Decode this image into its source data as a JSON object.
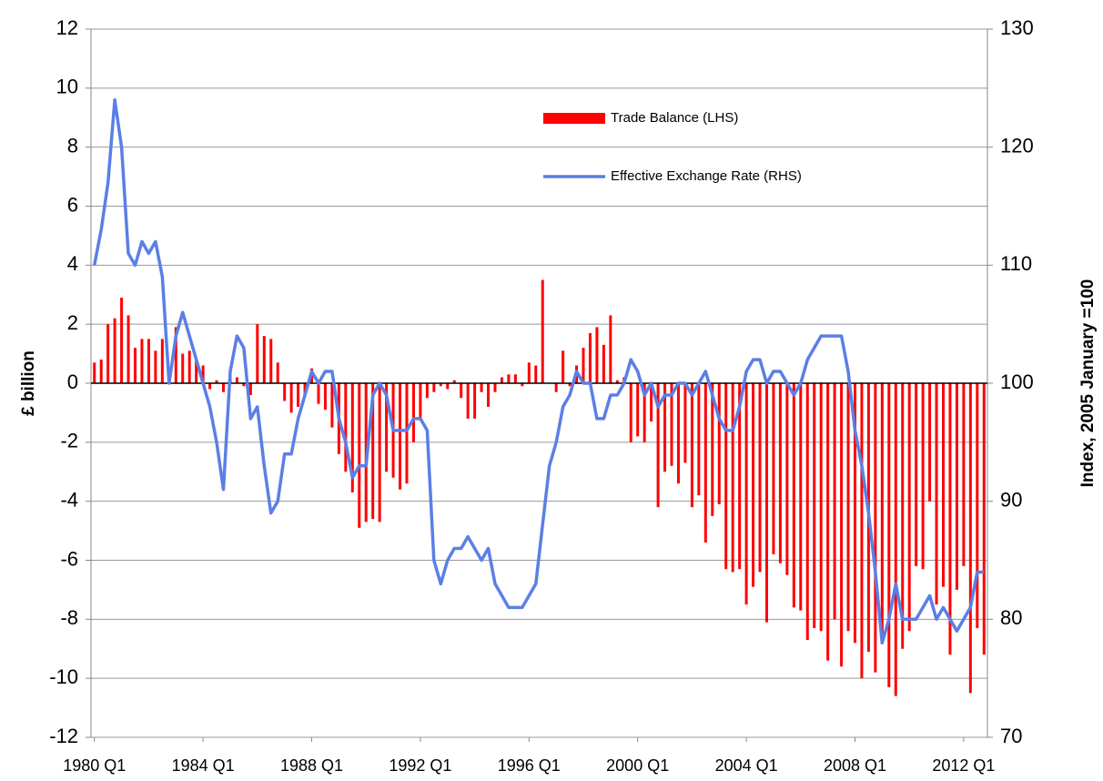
{
  "chart_data": {
    "type": "bar_line",
    "y_label": "£ billion",
    "y2_label": "Index, 2005 January =100",
    "categories": [
      "1980 Q1",
      null,
      null,
      null,
      null,
      null,
      null,
      null,
      null,
      null,
      null,
      null,
      null,
      null,
      null,
      null,
      "1984 Q1",
      null,
      null,
      null,
      null,
      null,
      null,
      null,
      null,
      null,
      null,
      null,
      null,
      null,
      null,
      null,
      "1988 Q1",
      null,
      null,
      null,
      null,
      null,
      null,
      null,
      null,
      null,
      null,
      null,
      null,
      null,
      null,
      null,
      "1992 Q1",
      null,
      null,
      null,
      null,
      null,
      null,
      null,
      null,
      null,
      null,
      null,
      null,
      null,
      null,
      null,
      "1996 Q1",
      null,
      null,
      null,
      null,
      null,
      null,
      null,
      null,
      null,
      null,
      null,
      null,
      null,
      null,
      null,
      "2000 Q1",
      null,
      null,
      null,
      null,
      null,
      null,
      null,
      null,
      null,
      null,
      null,
      null,
      null,
      null,
      null,
      "2004 Q1",
      null,
      null,
      null,
      null,
      null,
      null,
      null,
      null,
      null,
      null,
      null,
      null,
      null,
      null,
      null,
      "2008 Q1",
      null,
      null,
      null,
      null,
      null,
      null,
      null,
      null,
      null,
      null,
      null,
      null,
      null,
      null,
      null,
      "2012 Q1",
      null,
      null,
      null
    ],
    "series": [
      {
        "name": "Trade Balance (LHS)",
        "type": "bar",
        "color": "#ff0000",
        "values": [
          0.7,
          0.8,
          2.0,
          2.2,
          2.9,
          2.3,
          1.2,
          1.5,
          1.5,
          1.1,
          1.5,
          0.3,
          1.9,
          1.0,
          1.1,
          0.8,
          0.6,
          -0.2,
          0.1,
          -0.3,
          0.3,
          0.2,
          -0.1,
          -0.4,
          2.0,
          1.6,
          1.5,
          0.7,
          -0.6,
          -1.0,
          -0.8,
          -0.4,
          0.5,
          -0.7,
          -0.9,
          -1.5,
          -2.4,
          -3.0,
          -3.7,
          -4.9,
          -4.7,
          -4.6,
          -4.7,
          -3.0,
          -3.2,
          -3.6,
          -3.4,
          -2.0,
          -1.2,
          -0.5,
          -0.3,
          -0.1,
          -0.2,
          0.1,
          -0.5,
          -1.2,
          -1.2,
          -0.3,
          -0.8,
          -0.3,
          0.2,
          0.3,
          0.3,
          -0.1,
          0.7,
          0.6,
          3.5,
          0.0,
          -0.3,
          1.1,
          -0.1,
          0.6,
          1.2,
          1.7,
          1.9,
          1.3,
          2.3,
          0.1,
          0.2,
          -2.0,
          -1.8,
          -2.0,
          -1.3,
          -4.2,
          -3.0,
          -2.8,
          -3.4,
          -2.7,
          -4.2,
          -3.8,
          -5.4,
          -4.5,
          -4.1,
          -6.3,
          -6.4,
          -6.3,
          -7.5,
          -6.9,
          -6.4,
          -8.1,
          -5.8,
          -6.1,
          -6.5,
          -7.6,
          -7.7,
          -8.7,
          -8.3,
          -8.4,
          -9.4,
          -8.0,
          -9.6,
          -8.4,
          -8.8,
          -10.0,
          -9.1,
          -9.8,
          -8.5,
          -10.3,
          -10.6,
          -9.0,
          -8.4,
          -6.2,
          -6.3,
          -4.0,
          -7.5,
          -6.9,
          -9.2,
          -7.0,
          -6.2,
          -10.5,
          -8.3,
          -9.2
        ]
      },
      {
        "name": "Effective Exchange Rate (RHS)",
        "type": "line",
        "axis": "y2",
        "color": "#5b7fe6",
        "values": [
          110,
          113,
          117,
          124,
          120,
          111,
          110,
          112,
          111,
          112,
          109,
          100,
          104,
          106,
          104,
          102,
          100,
          98,
          95,
          91,
          101,
          104,
          103,
          97,
          98,
          93,
          89,
          90,
          94,
          94,
          97,
          99,
          101,
          100,
          101,
          101,
          97,
          95,
          92,
          93,
          93,
          99,
          100,
          99,
          96,
          96,
          96,
          97,
          97,
          96,
          85,
          83,
          85,
          86,
          86,
          87,
          86,
          85,
          86,
          83,
          82,
          81,
          81,
          81,
          82,
          83,
          88,
          93,
          95,
          98,
          99,
          101,
          100,
          100,
          97,
          97,
          99,
          99,
          100,
          102,
          101,
          99,
          100,
          98,
          99,
          99,
          100,
          100,
          99,
          100,
          101,
          99,
          97,
          96,
          96,
          98,
          101,
          102,
          102,
          100,
          101,
          101,
          100,
          99,
          100,
          102,
          103,
          104,
          104,
          104,
          104,
          101,
          96,
          93,
          89,
          84,
          78,
          80,
          83,
          80,
          80,
          80,
          81,
          82,
          80,
          81,
          80,
          79,
          80,
          81,
          84,
          84
        ]
      }
    ],
    "ylim": [
      -12,
      12
    ],
    "yticks": [
      -12,
      -10,
      -8,
      -6,
      -4,
      -2,
      0,
      2,
      4,
      6,
      8,
      10,
      12
    ],
    "y2lim": [
      70,
      130
    ],
    "y2ticks": [
      70,
      80,
      90,
      100,
      110,
      120,
      130
    ],
    "grid": true
  }
}
